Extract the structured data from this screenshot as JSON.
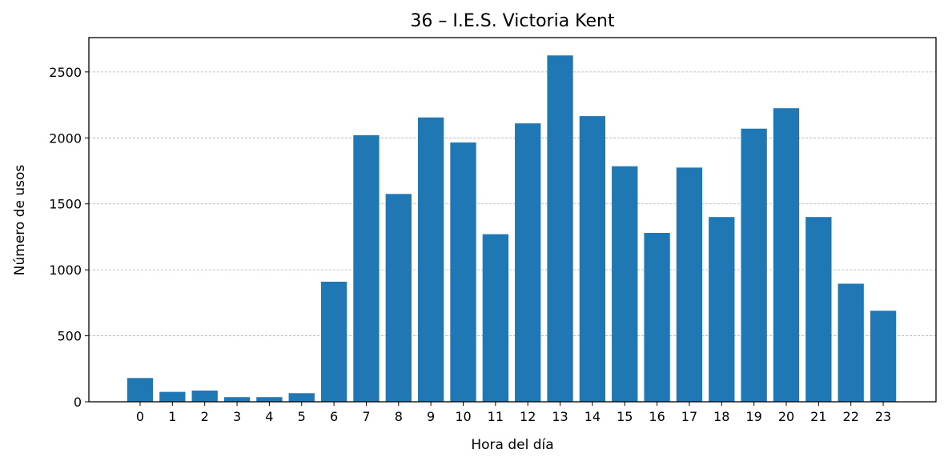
{
  "chart_data": {
    "type": "bar",
    "title": "36 – I.E.S. Victoria Kent",
    "xlabel": "Hora del día",
    "ylabel": "Número de usos",
    "categories": [
      "0",
      "1",
      "2",
      "3",
      "4",
      "5",
      "6",
      "7",
      "8",
      "9",
      "10",
      "11",
      "12",
      "13",
      "14",
      "15",
      "16",
      "17",
      "18",
      "19",
      "20",
      "21",
      "22",
      "23"
    ],
    "values": [
      180,
      75,
      85,
      35,
      35,
      65,
      910,
      2020,
      1575,
      2155,
      1965,
      1270,
      2110,
      2625,
      2165,
      1785,
      1280,
      1775,
      1400,
      2070,
      2225,
      1400,
      895,
      690
    ],
    "ylim": [
      0,
      2760
    ],
    "yticks": [
      "0",
      "500",
      "1000",
      "1500",
      "2000",
      "2500"
    ],
    "grid": "horizontal-dashed",
    "bar_color": "#1f77b4"
  }
}
